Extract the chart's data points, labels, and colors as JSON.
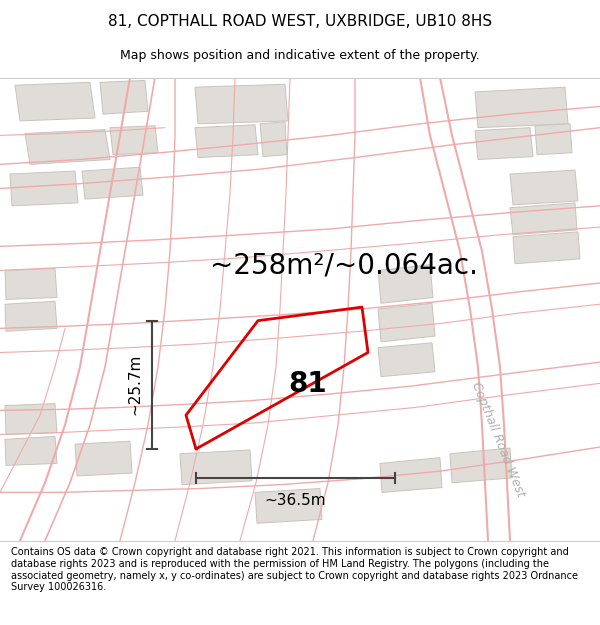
{
  "title": "81, COPTHALL ROAD WEST, UXBRIDGE, UB10 8HS",
  "subtitle": "Map shows position and indicative extent of the property.",
  "area_text": "~258m²/~0.064ac.",
  "label_81": "81",
  "dim_width": "~36.5m",
  "dim_height": "~25.7m",
  "street_label": "Copthall Road West",
  "footer": "Contains OS data © Crown copyright and database right 2021. This information is subject to Crown copyright and database rights 2023 and is reproduced with the permission of HM Land Registry. The polygons (including the associated geometry, namely x, y co-ordinates) are subject to Crown copyright and database rights 2023 Ordnance Survey 100026316.",
  "map_bg": "#f7f6f4",
  "road_color": "#f0aaaa",
  "road_color2": "#d0c8c0",
  "building_color": "#e0ddd8",
  "building_edge": "#c8c4bc",
  "parcel_color": "#dd0000",
  "dim_color": "#444444",
  "title_fontsize": 11,
  "subtitle_fontsize": 9,
  "area_fontsize": 20,
  "label_fontsize": 20,
  "dim_fontsize": 11,
  "street_fontsize": 9,
  "footer_fontsize": 7.0
}
